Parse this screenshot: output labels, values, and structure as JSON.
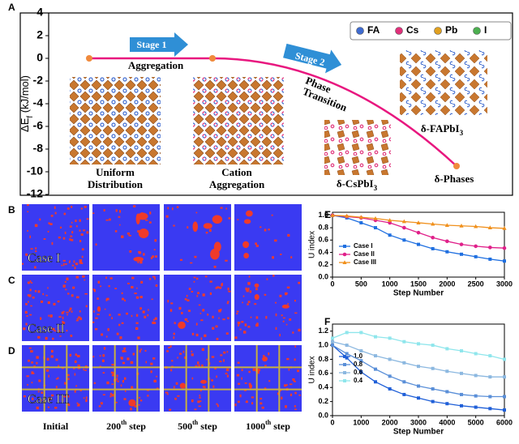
{
  "chart_data": [
    {
      "type": "line",
      "panel": "A",
      "y_label": {
        "text": "ΔE",
        "sub": "f",
        "suffix": " (kJ/mol)"
      },
      "ylim": [
        -12,
        4
      ],
      "yticks": [
        4,
        2,
        0,
        -2,
        -4,
        -6,
        -8,
        -10,
        -12
      ],
      "categories": [
        [
          "Uniform",
          "Distribution"
        ],
        [
          "Cation",
          "Aggregation"
        ],
        [
          "δ-Phases"
        ]
      ],
      "values": [
        0,
        0,
        -9.5
      ],
      "color": "#e8177f",
      "marker_color": "#f08a3c",
      "annotations": {
        "stage1": "Stage 1",
        "aggregation": "Aggregation",
        "stage2": "Stage 2",
        "transition": [
          "Phase",
          "Transition"
        ],
        "cs": {
          "text": "δ-CsPbI",
          "sub": "3"
        },
        "fa": {
          "text": "δ-FAPbI",
          "sub": "3"
        }
      },
      "legend": [
        {
          "name": "FA",
          "color": "#3f6bd0"
        },
        {
          "name": "Cs",
          "color": "#e0307a"
        },
        {
          "name": "Pb",
          "color": "#e0a020"
        },
        {
          "name": "I",
          "color": "#4caf50"
        }
      ]
    },
    {
      "type": "line",
      "panel": "E",
      "x_label": "Step Number",
      "y_label": "U index",
      "xlim": [
        0,
        3000
      ],
      "xticks": [
        0,
        500,
        1000,
        1500,
        2000,
        2500,
        3000
      ],
      "ylim": [
        0,
        1.05
      ],
      "yticks": [
        {
          "value": 0,
          "label": "0.0"
        },
        {
          "value": 0.2,
          "label": "0.2"
        },
        {
          "value": 0.4,
          "label": "0.4"
        },
        {
          "value": 0.6,
          "label": "0.6"
        },
        {
          "value": 0.8,
          "label": "0.8"
        },
        {
          "value": 1.0,
          "label": "1.0"
        }
      ],
      "x": [
        0,
        250,
        500,
        750,
        1000,
        1250,
        1500,
        1750,
        2000,
        2250,
        2500,
        2750,
        3000
      ],
      "series": [
        {
          "name": "Case I",
          "color": "#1f6fe0",
          "marker": "square",
          "values": [
            1.0,
            0.96,
            0.88,
            0.8,
            0.68,
            0.6,
            0.53,
            0.46,
            0.41,
            0.37,
            0.33,
            0.29,
            0.26
          ]
        },
        {
          "name": "Case II",
          "color": "#e0208a",
          "marker": "circle",
          "values": [
            1.0,
            0.98,
            0.96,
            0.92,
            0.88,
            0.8,
            0.72,
            0.64,
            0.58,
            0.53,
            0.5,
            0.48,
            0.47
          ]
        },
        {
          "name": "Case III",
          "color": "#f0901c",
          "marker": "triangle",
          "values": [
            1.0,
            0.99,
            0.97,
            0.95,
            0.92,
            0.9,
            0.88,
            0.86,
            0.84,
            0.83,
            0.82,
            0.8,
            0.79
          ]
        }
      ]
    },
    {
      "type": "line",
      "panel": "F",
      "x_label": "Step Number",
      "y_label": "U index",
      "xlim": [
        0,
        6000
      ],
      "xticks": [
        0,
        1000,
        2000,
        3000,
        4000,
        5000,
        6000
      ],
      "ylim": [
        0,
        1.3
      ],
      "yticks": [
        {
          "value": 0,
          "label": "0.0"
        },
        {
          "value": 0.2,
          "label": "0.2"
        },
        {
          "value": 0.4,
          "label": "0.4"
        },
        {
          "value": 0.6,
          "label": "0.6"
        },
        {
          "value": 0.8,
          "label": "0.8"
        },
        {
          "value": 1.0,
          "label": "1.0"
        },
        {
          "value": 1.2,
          "label": "1.2"
        }
      ],
      "x": [
        0,
        500,
        1000,
        1500,
        2000,
        2500,
        3000,
        3500,
        4000,
        4500,
        5000,
        5500,
        6000
      ],
      "series": [
        {
          "name": "1.0",
          "color": "#1f5fd8",
          "marker": "square",
          "values": [
            1.0,
            0.82,
            0.62,
            0.48,
            0.38,
            0.3,
            0.25,
            0.2,
            0.17,
            0.14,
            0.12,
            0.1,
            0.08
          ]
        },
        {
          "name": "0.8",
          "color": "#5a8fd8",
          "marker": "square",
          "values": [
            1.0,
            0.88,
            0.78,
            0.66,
            0.56,
            0.48,
            0.42,
            0.38,
            0.34,
            0.3,
            0.28,
            0.27,
            0.27
          ]
        },
        {
          "name": "0.6",
          "color": "#8cb8e0",
          "marker": "square",
          "values": [
            1.05,
            1.0,
            0.92,
            0.85,
            0.8,
            0.75,
            0.7,
            0.67,
            0.63,
            0.6,
            0.57,
            0.55,
            0.55
          ]
        },
        {
          "name": "0.4",
          "color": "#8fe6ec",
          "marker": "square",
          "values": [
            1.1,
            1.18,
            1.18,
            1.12,
            1.1,
            1.05,
            1.02,
            1.0,
            0.95,
            0.92,
            0.88,
            0.85,
            0.8
          ]
        }
      ]
    }
  ],
  "simulation": {
    "panels": [
      "B",
      "C",
      "D"
    ],
    "cases": [
      "Case I",
      "Case II",
      "Case III"
    ],
    "steps": [
      {
        "text": "Initial"
      },
      {
        "text": "200",
        "sup": "th",
        "suffix": " step"
      },
      {
        "text": "500",
        "sup": "th",
        "suffix": " step"
      },
      {
        "text": "1000",
        "sup": "th",
        "suffix": " step"
      }
    ]
  }
}
